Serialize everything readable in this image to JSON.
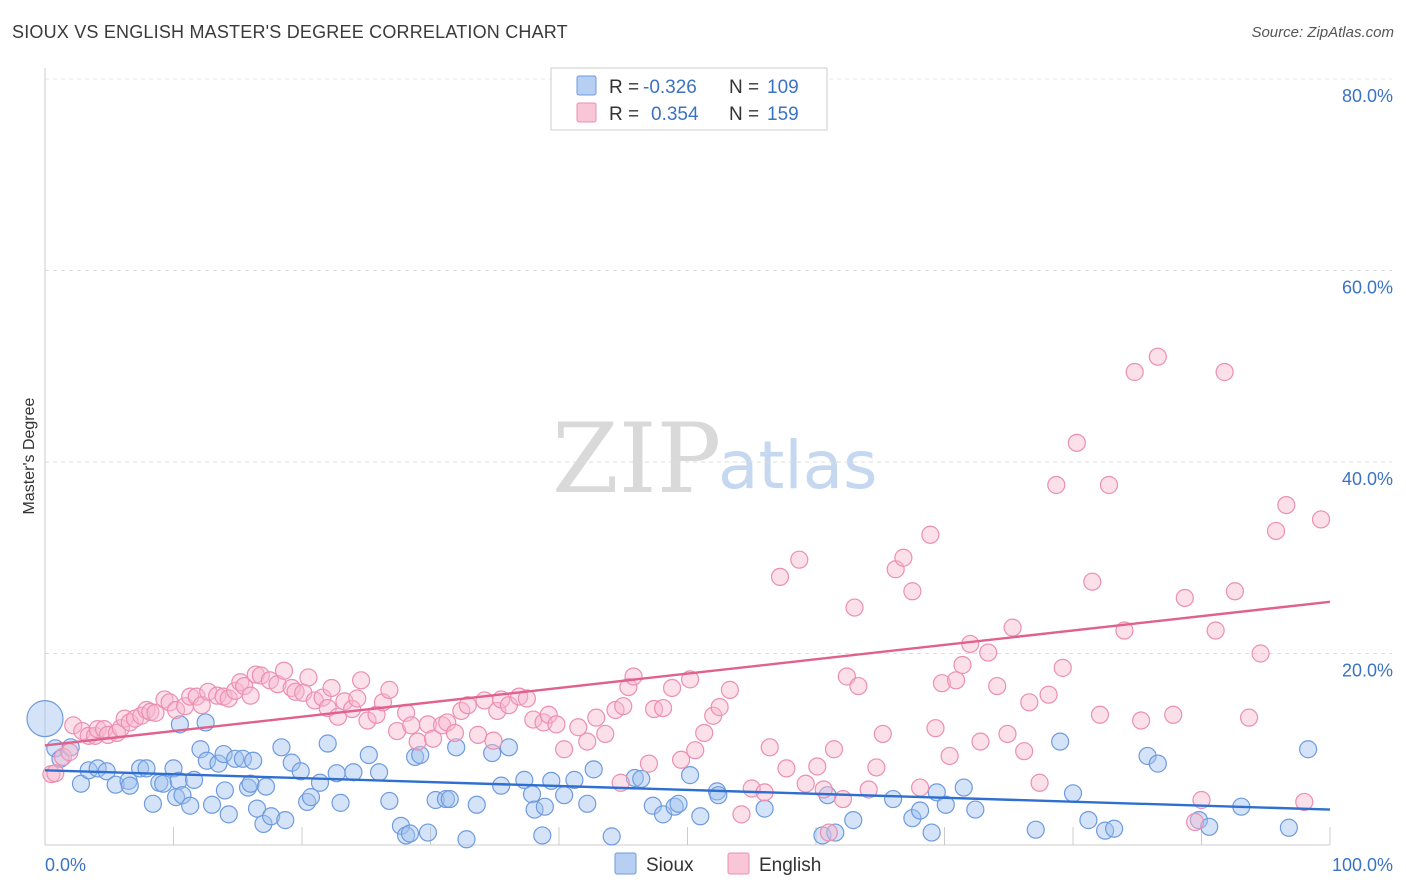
{
  "title": "SIOUX VS ENGLISH MASTER'S DEGREE CORRELATION CHART",
  "source": "Source: ZipAtlas.com",
  "watermark": {
    "zip": "ZIP",
    "atlas": "atlas"
  },
  "chart_data": {
    "type": "scatter",
    "ylabel": "Master's Degree",
    "xlim": [
      0,
      100
    ],
    "ylim": [
      0,
      80
    ],
    "x_tick_labels": [
      "0.0%",
      "100.0%"
    ],
    "y_ticks": [
      20,
      40,
      60,
      80
    ],
    "y_tick_labels": [
      "20.0%",
      "40.0%",
      "60.0%",
      "80.0%"
    ],
    "grid": true,
    "legend": {
      "placement": "top-center",
      "entries": [
        {
          "r_label": "R =",
          "r_value": "-0.326",
          "n_label": "N =",
          "n_value": "109"
        },
        {
          "r_label": "R =",
          "r_value": "0.354",
          "n_label": "N =",
          "n_value": "159"
        }
      ]
    },
    "series": [
      {
        "name": "Sioux",
        "color": "#8fb4e8",
        "line_color": "#2f6fcf",
        "trend": [
          [
            0,
            7.8
          ],
          [
            100,
            3.7
          ]
        ],
        "points": [
          [
            0,
            13.2
          ],
          [
            0.8,
            10.1
          ],
          [
            1.2,
            9.0
          ],
          [
            2.0,
            10.2
          ],
          [
            2.8,
            6.4
          ],
          [
            3.4,
            7.8
          ],
          [
            4.1,
            8.0
          ],
          [
            4.8,
            7.7
          ],
          [
            5.5,
            6.3
          ],
          [
            6.5,
            6.7
          ],
          [
            6.6,
            6.2
          ],
          [
            7.4,
            8.0
          ],
          [
            7.9,
            8.0
          ],
          [
            8.4,
            4.3
          ],
          [
            8.9,
            6.5
          ],
          [
            9.2,
            6.4
          ],
          [
            10.0,
            8.0
          ],
          [
            10.2,
            5.0
          ],
          [
            10.4,
            6.7
          ],
          [
            10.5,
            12.6
          ],
          [
            10.7,
            5.2
          ],
          [
            11.3,
            4.1
          ],
          [
            11.6,
            6.8
          ],
          [
            12.1,
            10.0
          ],
          [
            12.6,
            8.8
          ],
          [
            12.5,
            12.8
          ],
          [
            13.0,
            4.2
          ],
          [
            13.5,
            8.5
          ],
          [
            13.9,
            9.5
          ],
          [
            14.0,
            5.7
          ],
          [
            14.3,
            3.2
          ],
          [
            14.8,
            9.0
          ],
          [
            15.4,
            9.0
          ],
          [
            15.8,
            6.0
          ],
          [
            16.0,
            6.4
          ],
          [
            16.2,
            8.8
          ],
          [
            16.5,
            3.8
          ],
          [
            17.0,
            2.2
          ],
          [
            17.2,
            6.1
          ],
          [
            17.6,
            3.0
          ],
          [
            18.4,
            10.2
          ],
          [
            18.7,
            2.6
          ],
          [
            19.2,
            8.6
          ],
          [
            19.9,
            7.7
          ],
          [
            20.4,
            4.5
          ],
          [
            20.7,
            5.0
          ],
          [
            21.4,
            6.5
          ],
          [
            22.0,
            10.6
          ],
          [
            22.7,
            7.5
          ],
          [
            23.0,
            4.4
          ],
          [
            24.0,
            7.6
          ],
          [
            25.2,
            9.4
          ],
          [
            26.0,
            7.6
          ],
          [
            26.8,
            4.6
          ],
          [
            27.7,
            2.0
          ],
          [
            28.1,
            1.0
          ],
          [
            28.4,
            1.2
          ],
          [
            28.8,
            9.2
          ],
          [
            29.2,
            9.4
          ],
          [
            29.8,
            1.3
          ],
          [
            30.4,
            4.7
          ],
          [
            31.2,
            4.8
          ],
          [
            31.5,
            4.8
          ],
          [
            32.0,
            10.2
          ],
          [
            32.8,
            0.6
          ],
          [
            33.6,
            4.2
          ],
          [
            34.8,
            9.6
          ],
          [
            35.5,
            6.2
          ],
          [
            36.1,
            10.2
          ],
          [
            37.3,
            6.8
          ],
          [
            37.9,
            5.3
          ],
          [
            38.1,
            3.7
          ],
          [
            38.7,
            1.0
          ],
          [
            38.9,
            4.0
          ],
          [
            39.4,
            6.7
          ],
          [
            40.4,
            5.2
          ],
          [
            41.2,
            6.8
          ],
          [
            42.2,
            4.3
          ],
          [
            42.7,
            7.9
          ],
          [
            44.1,
            0.9
          ],
          [
            45.9,
            7.0
          ],
          [
            46.4,
            6.9
          ],
          [
            47.3,
            4.1
          ],
          [
            48.1,
            3.2
          ],
          [
            49.0,
            4.0
          ],
          [
            49.3,
            4.3
          ],
          [
            50.2,
            7.3
          ],
          [
            51.0,
            3.0
          ],
          [
            52.3,
            5.6
          ],
          [
            52.4,
            5.2
          ],
          [
            56.0,
            3.8
          ],
          [
            60.5,
            1.0
          ],
          [
            60.9,
            5.2
          ],
          [
            61.5,
            1.3
          ],
          [
            62.9,
            2.6
          ],
          [
            66.0,
            4.8
          ],
          [
            67.5,
            2.8
          ],
          [
            68.1,
            3.6
          ],
          [
            69.0,
            1.3
          ],
          [
            69.4,
            5.5
          ],
          [
            70.1,
            4.2
          ],
          [
            71.5,
            6.0
          ],
          [
            72.4,
            3.7
          ],
          [
            77.1,
            1.6
          ],
          [
            79.0,
            10.8
          ],
          [
            80.0,
            5.4
          ],
          [
            81.2,
            2.6
          ],
          [
            82.5,
            1.5
          ],
          [
            83.2,
            1.7
          ],
          [
            85.8,
            9.3
          ],
          [
            86.6,
            8.5
          ],
          [
            89.8,
            2.6
          ],
          [
            90.6,
            1.9
          ],
          [
            93.1,
            4.0
          ],
          [
            96.8,
            1.8
          ],
          [
            98.3,
            10.0
          ]
        ]
      },
      {
        "name": "English",
        "color": "#f3b0c6",
        "line_color": "#e0608e",
        "trend": [
          [
            0,
            10.4
          ],
          [
            100,
            25.4
          ]
        ],
        "points": [
          [
            0.5,
            7.4
          ],
          [
            0.8,
            7.5
          ],
          [
            1.4,
            9.2
          ],
          [
            1.9,
            9.7
          ],
          [
            2.2,
            12.5
          ],
          [
            2.9,
            11.9
          ],
          [
            3.4,
            11.4
          ],
          [
            3.9,
            11.4
          ],
          [
            4.1,
            12.1
          ],
          [
            4.6,
            12.1
          ],
          [
            4.9,
            11.5
          ],
          [
            5.6,
            11.7
          ],
          [
            5.9,
            12.2
          ],
          [
            6.2,
            13.2
          ],
          [
            6.6,
            12.8
          ],
          [
            7.0,
            13.2
          ],
          [
            7.5,
            13.5
          ],
          [
            7.9,
            14.1
          ],
          [
            8.2,
            13.9
          ],
          [
            8.6,
            13.8
          ],
          [
            9.3,
            15.2
          ],
          [
            9.7,
            14.9
          ],
          [
            10.2,
            14.1
          ],
          [
            10.9,
            14.5
          ],
          [
            11.3,
            15.5
          ],
          [
            11.8,
            15.5
          ],
          [
            12.2,
            14.6
          ],
          [
            12.7,
            16.0
          ],
          [
            13.4,
            15.6
          ],
          [
            13.9,
            15.5
          ],
          [
            14.3,
            15.3
          ],
          [
            14.8,
            16.1
          ],
          [
            15.2,
            17.0
          ],
          [
            15.5,
            16.6
          ],
          [
            16.0,
            15.6
          ],
          [
            16.4,
            17.8
          ],
          [
            16.8,
            17.7
          ],
          [
            17.5,
            17.2
          ],
          [
            18.1,
            16.8
          ],
          [
            18.6,
            18.2
          ],
          [
            19.2,
            16.4
          ],
          [
            19.5,
            16.0
          ],
          [
            20.1,
            15.9
          ],
          [
            20.5,
            17.5
          ],
          [
            21.0,
            15.1
          ],
          [
            21.6,
            15.4
          ],
          [
            22.0,
            14.3
          ],
          [
            22.3,
            16.4
          ],
          [
            22.8,
            13.4
          ],
          [
            23.3,
            15.0
          ],
          [
            23.9,
            14.2
          ],
          [
            24.3,
            15.3
          ],
          [
            24.6,
            17.2
          ],
          [
            25.1,
            13.0
          ],
          [
            25.8,
            13.6
          ],
          [
            26.3,
            14.9
          ],
          [
            26.8,
            16.2
          ],
          [
            27.4,
            11.9
          ],
          [
            28.1,
            13.8
          ],
          [
            28.5,
            12.5
          ],
          [
            29.0,
            10.8
          ],
          [
            29.8,
            12.6
          ],
          [
            30.2,
            11.1
          ],
          [
            30.9,
            12.5
          ],
          [
            31.3,
            12.8
          ],
          [
            31.9,
            11.7
          ],
          [
            32.4,
            14.0
          ],
          [
            32.9,
            14.6
          ],
          [
            33.7,
            11.5
          ],
          [
            34.2,
            15.1
          ],
          [
            34.9,
            10.9
          ],
          [
            35.2,
            14.0
          ],
          [
            35.5,
            15.2
          ],
          [
            36.1,
            14.6
          ],
          [
            36.9,
            15.5
          ],
          [
            37.5,
            15.3
          ],
          [
            38.0,
            13.1
          ],
          [
            38.8,
            12.8
          ],
          [
            39.2,
            13.6
          ],
          [
            39.8,
            12.6
          ],
          [
            40.4,
            10.0
          ],
          [
            41.5,
            12.3
          ],
          [
            42.2,
            10.8
          ],
          [
            42.9,
            13.3
          ],
          [
            43.6,
            11.6
          ],
          [
            44.4,
            14.1
          ],
          [
            44.8,
            6.5
          ],
          [
            45.0,
            14.5
          ],
          [
            45.4,
            16.5
          ],
          [
            45.8,
            17.6
          ],
          [
            47.0,
            8.5
          ],
          [
            47.4,
            14.2
          ],
          [
            48.1,
            14.3
          ],
          [
            48.8,
            16.4
          ],
          [
            49.5,
            8.9
          ],
          [
            50.2,
            17.3
          ],
          [
            50.6,
            9.9
          ],
          [
            51.3,
            11.7
          ],
          [
            52.0,
            13.5
          ],
          [
            52.5,
            14.4
          ],
          [
            53.3,
            16.2
          ],
          [
            54.2,
            3.2
          ],
          [
            55.0,
            5.9
          ],
          [
            56.0,
            5.5
          ],
          [
            56.4,
            10.2
          ],
          [
            57.2,
            28.0
          ],
          [
            57.7,
            8.0
          ],
          [
            58.7,
            29.8
          ],
          [
            59.2,
            6.4
          ],
          [
            60.1,
            8.2
          ],
          [
            60.6,
            5.8
          ],
          [
            61.0,
            1.3
          ],
          [
            61.4,
            10.0
          ],
          [
            62.1,
            4.8
          ],
          [
            62.4,
            17.6
          ],
          [
            63.0,
            24.8
          ],
          [
            63.3,
            16.6
          ],
          [
            64.1,
            5.8
          ],
          [
            64.7,
            8.1
          ],
          [
            65.2,
            11.6
          ],
          [
            66.2,
            28.8
          ],
          [
            66.8,
            30.0
          ],
          [
            67.5,
            26.5
          ],
          [
            68.1,
            6.0
          ],
          [
            68.9,
            32.4
          ],
          [
            69.3,
            12.2
          ],
          [
            69.8,
            16.9
          ],
          [
            70.4,
            9.3
          ],
          [
            70.9,
            17.2
          ],
          [
            71.4,
            18.8
          ],
          [
            72.0,
            21.0
          ],
          [
            72.8,
            10.8
          ],
          [
            73.4,
            20.1
          ],
          [
            74.1,
            16.6
          ],
          [
            74.9,
            11.6
          ],
          [
            75.3,
            22.7
          ],
          [
            76.2,
            9.8
          ],
          [
            76.6,
            14.9
          ],
          [
            77.4,
            6.5
          ],
          [
            78.1,
            15.7
          ],
          [
            78.7,
            37.6
          ],
          [
            79.2,
            18.5
          ],
          [
            80.3,
            42.0
          ],
          [
            81.5,
            27.5
          ],
          [
            82.1,
            13.6
          ],
          [
            82.8,
            37.6
          ],
          [
            84.0,
            22.4
          ],
          [
            84.8,
            49.4
          ],
          [
            85.3,
            13.0
          ],
          [
            86.6,
            51.0
          ],
          [
            87.8,
            13.6
          ],
          [
            88.7,
            25.8
          ],
          [
            89.5,
            2.4
          ],
          [
            90.0,
            4.7
          ],
          [
            91.1,
            22.4
          ],
          [
            91.8,
            49.4
          ],
          [
            92.6,
            26.5
          ],
          [
            93.7,
            13.3
          ],
          [
            94.6,
            20.0
          ],
          [
            95.8,
            32.8
          ],
          [
            96.6,
            35.5
          ],
          [
            98.0,
            4.5
          ],
          [
            99.3,
            34.0
          ]
        ]
      }
    ]
  }
}
